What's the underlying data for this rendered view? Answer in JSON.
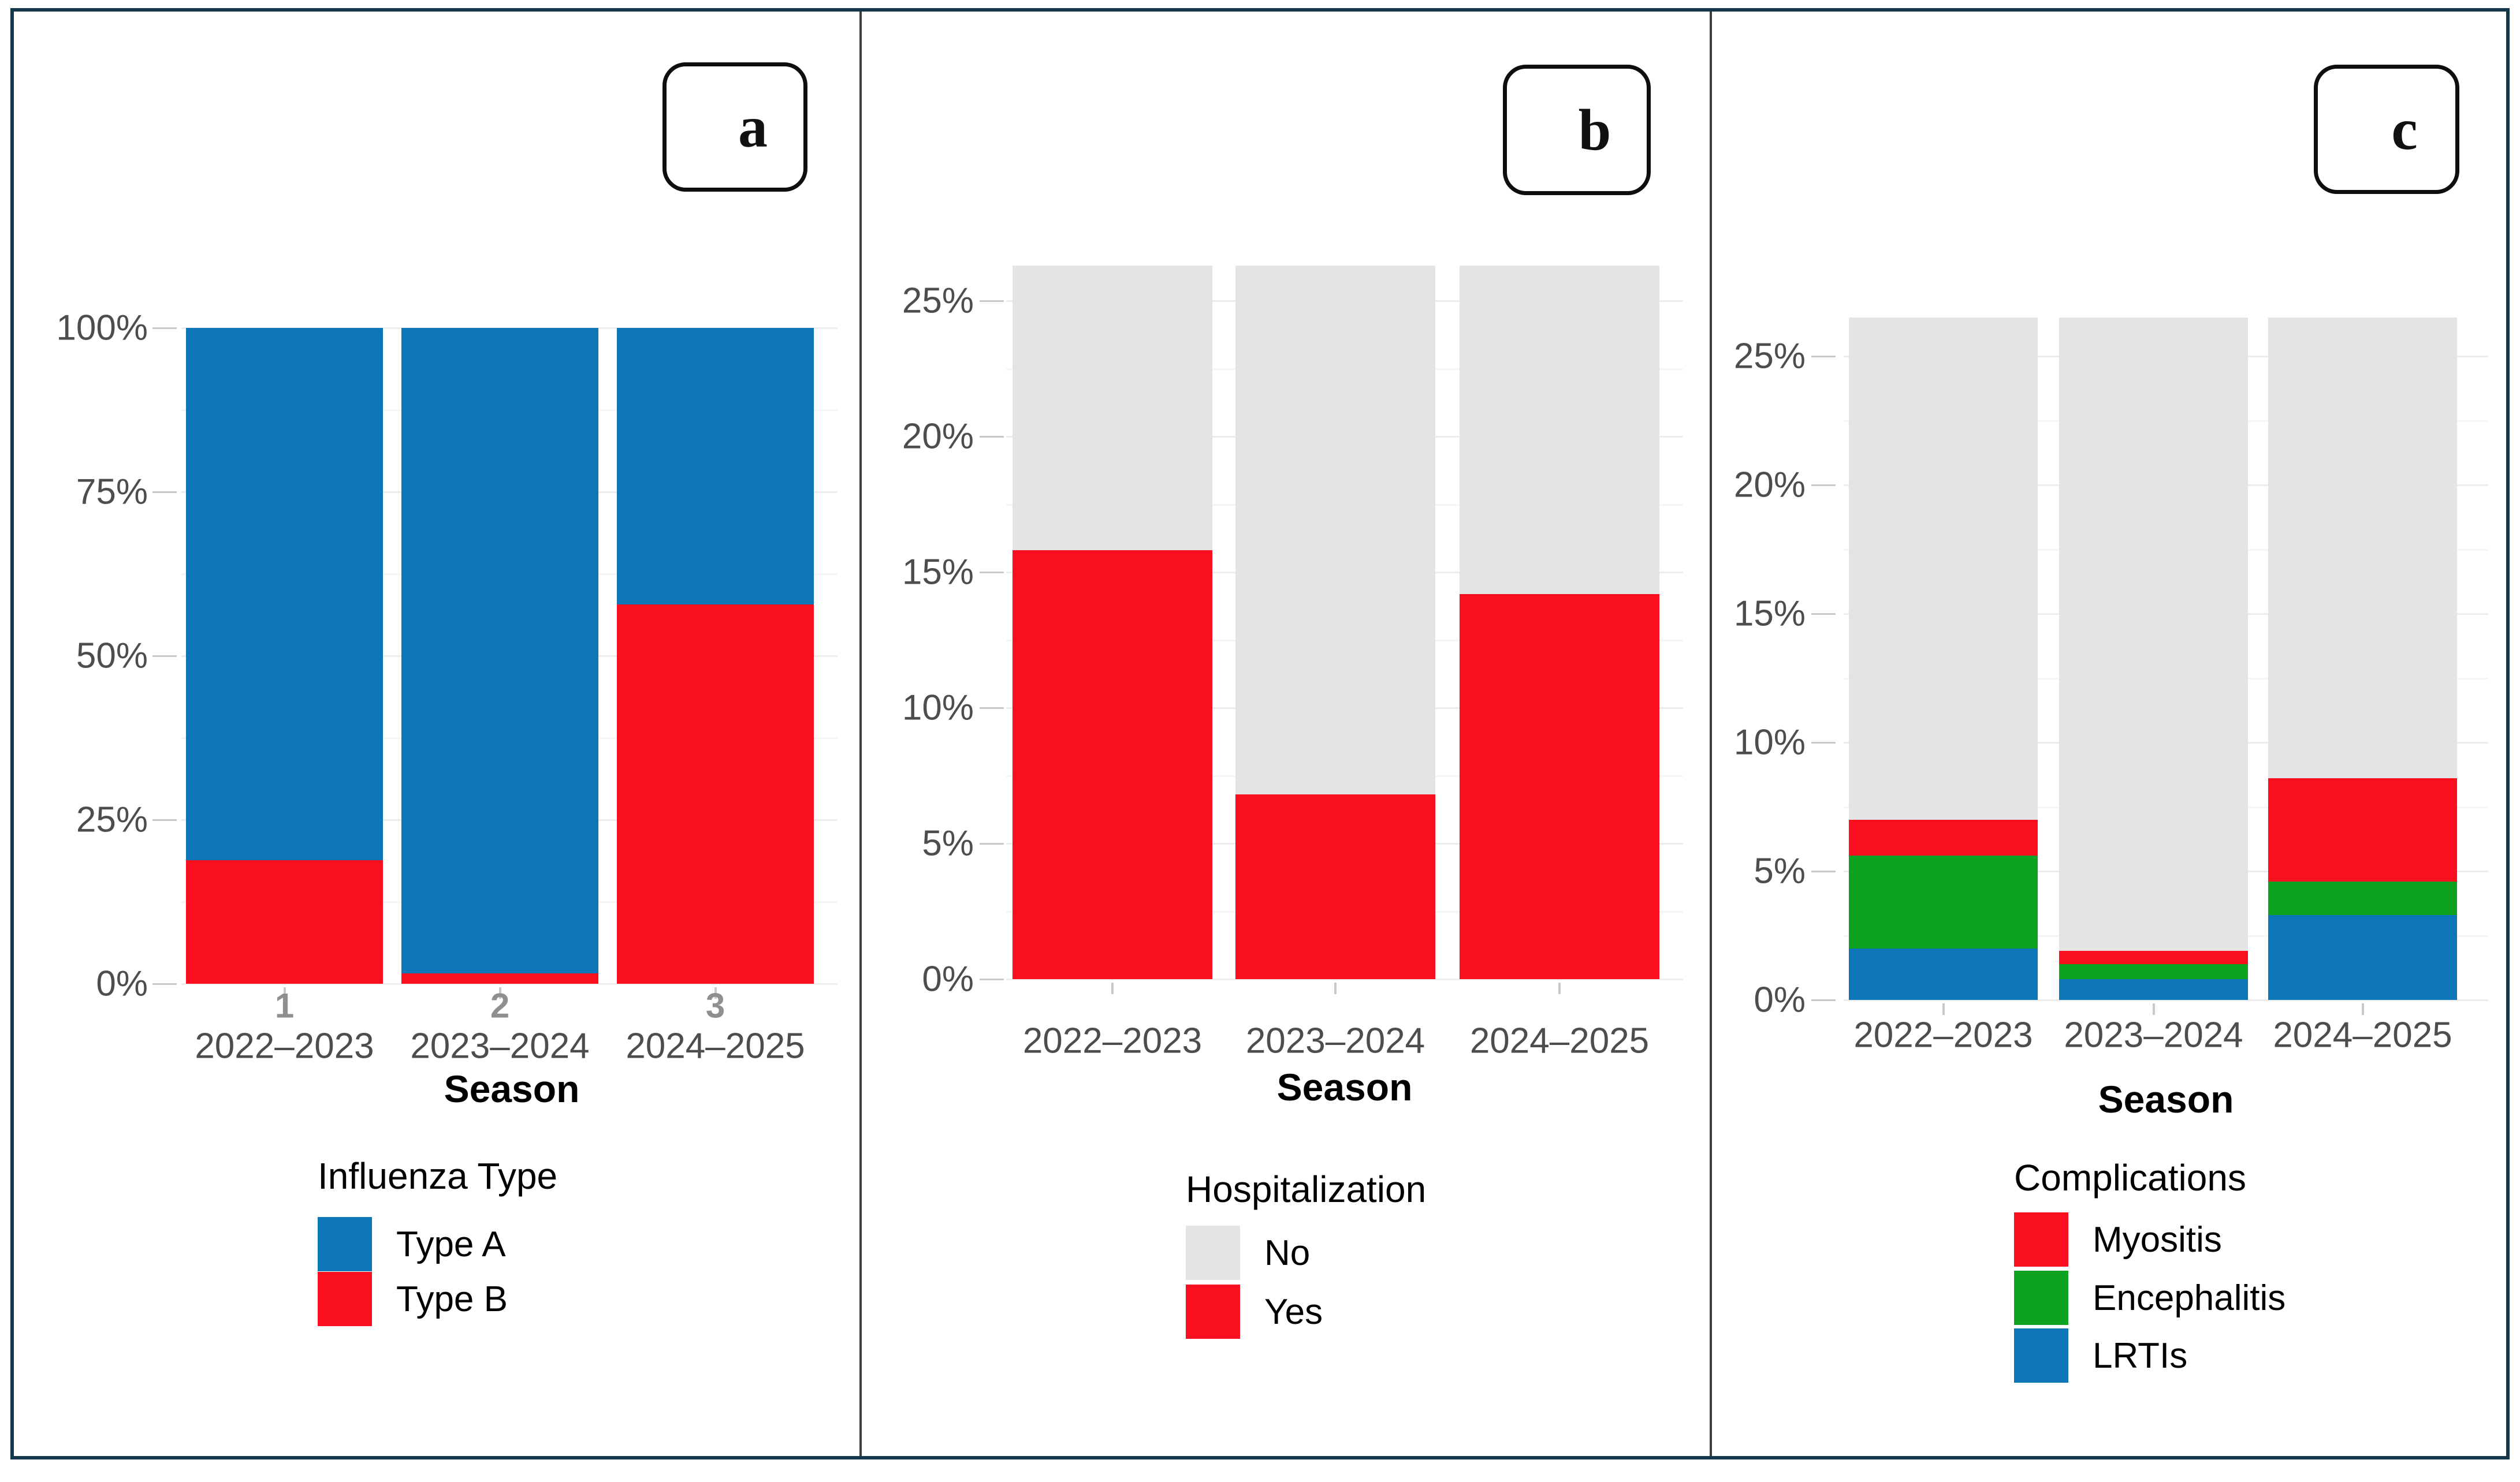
{
  "figure": {
    "background": "#ffffff",
    "border_color": "#15374a",
    "divider_color": "#3d3d3d",
    "panel_letters": [
      "a",
      "b",
      "c"
    ]
  },
  "colors": {
    "blue": "#0d76b8",
    "red": "#fa0f1e",
    "green": "#0da221",
    "grey": "#e4e4e4"
  },
  "panels": [
    {
      "letter": "a",
      "x_axis_title": "Season",
      "legend_title": "Influenza Type",
      "legend": [
        {
          "label": "Type A",
          "color": "blue"
        },
        {
          "label": "Type B",
          "color": "red"
        }
      ]
    },
    {
      "letter": "b",
      "x_axis_title": "Season",
      "legend_title": "Hospitalization",
      "legend": [
        {
          "label": "No",
          "color": "grey"
        },
        {
          "label": "Yes",
          "color": "red"
        }
      ]
    },
    {
      "letter": "c",
      "x_axis_title": "Season",
      "legend_title": "Complications",
      "legend": [
        {
          "label": "Myositis",
          "color": "red"
        },
        {
          "label": "Encephalitis",
          "color": "green"
        },
        {
          "label": "LRTIs",
          "color": "blue"
        }
      ]
    }
  ],
  "chart_data": [
    {
      "type": "bar",
      "stacked": true,
      "units": "percent",
      "categories": [
        "2022–2023",
        "2023–2024",
        "2024–2025"
      ],
      "category_numbers": [
        "1",
        "2",
        "3"
      ],
      "series": [
        {
          "name": "Type B",
          "color": "red",
          "values": [
            18.8,
            1.6,
            57.8
          ],
          "in_legend": true
        },
        {
          "name": "Type A",
          "color": "blue",
          "values": [
            81.2,
            98.4,
            42.2
          ],
          "in_legend": true
        }
      ],
      "xlabel": "Season",
      "ylabel": "",
      "ylim": [
        0,
        100
      ],
      "yticks": [
        0,
        25,
        50,
        75,
        100
      ],
      "grid": true,
      "legend_title": "Influenza Type",
      "legend_position": "bottom"
    },
    {
      "type": "bar",
      "stacked": true,
      "units": "percent",
      "categories": [
        "2022–2023",
        "2023–2024",
        "2024–2025"
      ],
      "series": [
        {
          "name": "Yes",
          "color": "red",
          "values": [
            15.8,
            6.8,
            14.2
          ],
          "in_legend": true
        },
        {
          "name": "No",
          "color": "grey",
          "values": [
            10.5,
            19.5,
            12.1
          ],
          "in_legend": true
        }
      ],
      "bar_total": 26.3,
      "xlabel": "Season",
      "ylabel": "",
      "ylim": [
        0,
        25
      ],
      "yticks": [
        0,
        5,
        10,
        15,
        20,
        25
      ],
      "grid": true,
      "legend_title": "Hospitalization",
      "legend_position": "bottom"
    },
    {
      "type": "bar",
      "stacked": true,
      "units": "percent",
      "categories": [
        "2022–2023",
        "2023–2024",
        "2024–2025"
      ],
      "series": [
        {
          "name": "LRTIs",
          "color": "blue",
          "values": [
            2.0,
            0.8,
            3.3
          ],
          "in_legend": true
        },
        {
          "name": "Encephalitis",
          "color": "green",
          "values": [
            3.6,
            0.6,
            1.3
          ],
          "in_legend": true
        },
        {
          "name": "Myositis",
          "color": "red",
          "values": [
            1.4,
            0.5,
            4.0
          ],
          "in_legend": true
        },
        {
          "name": "",
          "color": "grey",
          "values": [
            19.5,
            24.6,
            17.9
          ],
          "in_legend": false
        }
      ],
      "bar_total": 26.5,
      "xlabel": "Season",
      "ylabel": "",
      "ylim": [
        0,
        25
      ],
      "yticks": [
        0,
        5,
        10,
        15,
        20,
        25
      ],
      "grid": true,
      "legend_title": "Complications",
      "legend_position": "bottom"
    }
  ]
}
